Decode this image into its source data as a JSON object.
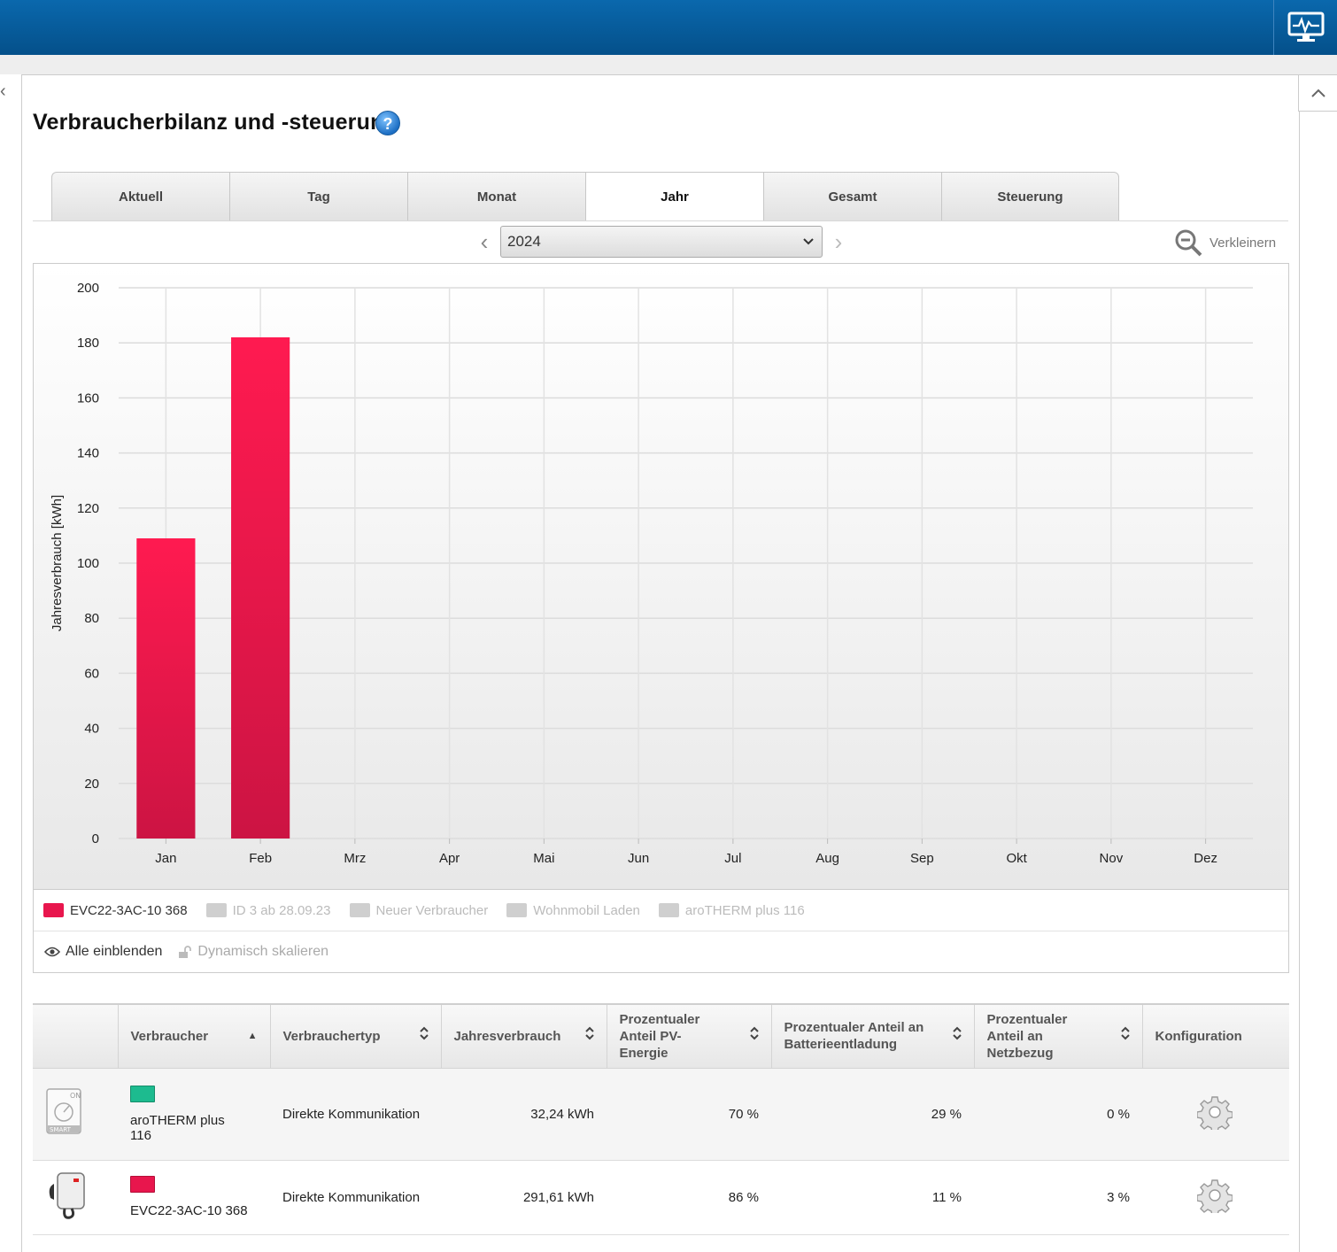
{
  "header": {
    "icon": "monitor-icon"
  },
  "page": {
    "title": "Verbraucherbilanz und -steuerung",
    "help_icon": "?"
  },
  "tabs": [
    {
      "label": "Aktuell"
    },
    {
      "label": "Tag"
    },
    {
      "label": "Monat"
    },
    {
      "label": "Jahr",
      "active": true
    },
    {
      "label": "Gesamt"
    },
    {
      "label": "Steuerung"
    }
  ],
  "period": {
    "selected_year": "2024",
    "zoom_label": "Verkleinern"
  },
  "chart_data": {
    "type": "bar",
    "ylabel": "Jahresverbrauch [kWh]",
    "ylim": [
      0,
      200
    ],
    "yticks": [
      0,
      20,
      40,
      60,
      80,
      100,
      120,
      140,
      160,
      180,
      200
    ],
    "categories": [
      "Jan",
      "Feb",
      "Mrz",
      "Apr",
      "Mai",
      "Jun",
      "Jul",
      "Aug",
      "Sep",
      "Okt",
      "Nov",
      "Dez"
    ],
    "series": [
      {
        "name": "EVC22-3AC-10 368",
        "color": "#e8164d",
        "values": [
          109,
          182,
          null,
          null,
          null,
          null,
          null,
          null,
          null,
          null,
          null,
          null
        ]
      }
    ],
    "grid": true
  },
  "legend": {
    "items": [
      {
        "label": "EVC22-3AC-10 368",
        "active": true
      },
      {
        "label": "ID 3 ab 28.09.23",
        "active": false
      },
      {
        "label": "Neuer Verbraucher",
        "active": false
      },
      {
        "label": "Wohnmobil Laden",
        "active": false
      },
      {
        "label": "aroTHERM plus 116",
        "active": false
      }
    ],
    "show_all": "Alle einblenden",
    "dynamic_scale": "Dynamisch skalieren"
  },
  "table": {
    "headers": {
      "verbraucher": "Verbraucher",
      "typ": "Verbrauchertyp",
      "jahr": "Jahresverbrauch",
      "pv": "Prozentualer Anteil PV-Energie",
      "batt": "Prozentualer Anteil an Batterieentladung",
      "netz": "Prozentualer Anteil an Netzbezug",
      "konfig": "Konfiguration"
    },
    "rows": [
      {
        "name": "aroTHERM plus 116",
        "color": "#1dbb8f",
        "type": "Direkte Kommunikation",
        "consumption": "32,24 kWh",
        "pv": "70 %",
        "battery": "29 %",
        "grid": "0 %",
        "icon": "smart-plug-icon"
      },
      {
        "name": "EVC22-3AC-10 368",
        "color": "#e8164d",
        "type": "Direkte Kommunikation",
        "consumption": "291,61 kWh",
        "pv": "86 %",
        "battery": "11 %",
        "grid": "3 %",
        "icon": "ev-charger-icon"
      }
    ]
  }
}
